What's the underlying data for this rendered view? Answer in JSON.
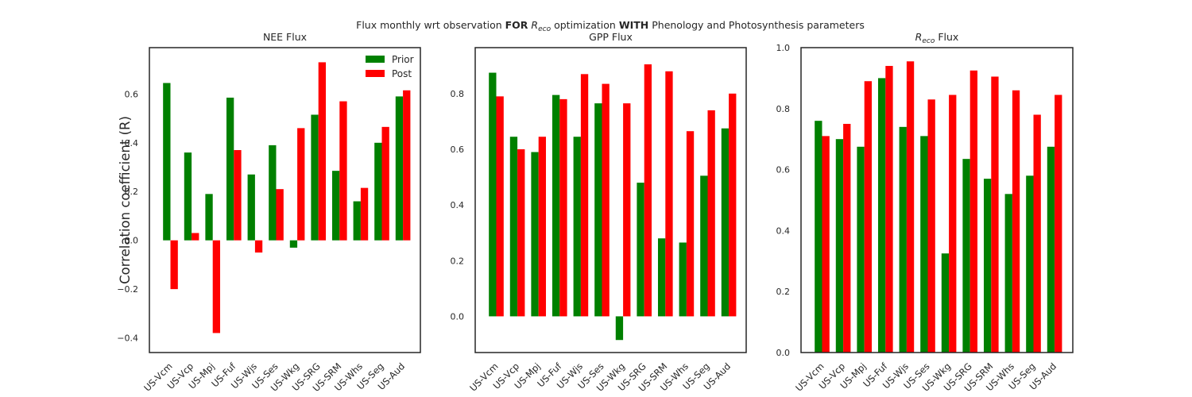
{
  "suptitle": {
    "pre": "Flux monthly wrt observation ",
    "b1": "FOR",
    "mid1": " ",
    "r": "R",
    "sub": "eco",
    "mid2": " optimization ",
    "b2": "WITH",
    "post": " Phenology and Photosynthesis parameters"
  },
  "ylabel": "Correlation coefficient (R)",
  "legend": {
    "entries": [
      "Prior",
      "Post"
    ],
    "position": "top-right",
    "colors": [
      "#008000",
      "#ff0000"
    ]
  },
  "chart_data": [
    {
      "type": "bar",
      "title": "NEE Flux",
      "categories": [
        "US-Vcm",
        "US-Vcp",
        "US-Mpj",
        "US-Fuf",
        "US-Wjs",
        "US-Ses",
        "US-Wkg",
        "US-SRG",
        "US-SRM",
        "US-Whs",
        "US-Seg",
        "US-Aud"
      ],
      "series": [
        {
          "name": "Prior",
          "color": "#008000",
          "values": [
            0.645,
            0.36,
            0.19,
            0.585,
            0.27,
            0.39,
            -0.03,
            0.515,
            0.285,
            0.16,
            0.4,
            0.59
          ]
        },
        {
          "name": "Post",
          "color": "#ff0000",
          "values": [
            -0.2,
            0.03,
            -0.38,
            0.37,
            -0.05,
            0.21,
            0.46,
            0.73,
            0.57,
            0.215,
            0.465,
            0.615
          ]
        }
      ],
      "ylim": [
        -0.46,
        0.79
      ],
      "yticks": [
        -0.4,
        -0.2,
        0.0,
        0.2,
        0.4,
        0.6
      ],
      "ytick_labels": [
        "−0.4",
        "−0.2",
        "0.0",
        "0.2",
        "0.4",
        "0.6"
      ],
      "legend": true
    },
    {
      "type": "bar",
      "title": "GPP Flux",
      "categories": [
        "US-Vcm",
        "US-Vcp",
        "US-Mpj",
        "US-Fuf",
        "US-Wjs",
        "US-Ses",
        "US-Wkg",
        "US-SRG",
        "US-SRM",
        "US-Whs",
        "US-Seg",
        "US-Aud"
      ],
      "series": [
        {
          "name": "Prior",
          "color": "#008000",
          "values": [
            0.875,
            0.645,
            0.59,
            0.795,
            0.645,
            0.765,
            -0.085,
            0.48,
            0.28,
            0.265,
            0.505,
            0.675
          ]
        },
        {
          "name": "Post",
          "color": "#ff0000",
          "values": [
            0.79,
            0.6,
            0.645,
            0.78,
            0.87,
            0.835,
            0.765,
            0.905,
            0.88,
            0.665,
            0.74,
            0.8
          ]
        }
      ],
      "ylim": [
        -0.13,
        0.965
      ],
      "yticks": [
        0.0,
        0.2,
        0.4,
        0.6,
        0.8
      ],
      "ytick_labels": [
        "0.0",
        "0.2",
        "0.4",
        "0.6",
        "0.8"
      ],
      "legend": false
    },
    {
      "type": "bar",
      "title": "R_eco Flux",
      "categories": [
        "US-Vcm",
        "US-Vcp",
        "US-Mpj",
        "US-Fuf",
        "US-Wjs",
        "US-Ses",
        "US-Wkg",
        "US-SRG",
        "US-SRM",
        "US-Whs",
        "US-Seg",
        "US-Aud"
      ],
      "series": [
        {
          "name": "Prior",
          "color": "#008000",
          "values": [
            0.76,
            0.7,
            0.675,
            0.9,
            0.74,
            0.71,
            0.325,
            0.635,
            0.57,
            0.52,
            0.58,
            0.675
          ]
        },
        {
          "name": "Post",
          "color": "#ff0000",
          "values": [
            0.71,
            0.75,
            0.89,
            0.94,
            0.955,
            0.83,
            0.845,
            0.925,
            0.905,
            0.86,
            0.78,
            0.845
          ]
        }
      ],
      "ylim": [
        0.0,
        1.0
      ],
      "yticks": [
        0.0,
        0.2,
        0.4,
        0.6,
        0.8,
        1.0
      ],
      "ytick_labels": [
        "0.0",
        "0.2",
        "0.4",
        "0.6",
        "0.8",
        "1.0"
      ],
      "legend": false
    }
  ]
}
